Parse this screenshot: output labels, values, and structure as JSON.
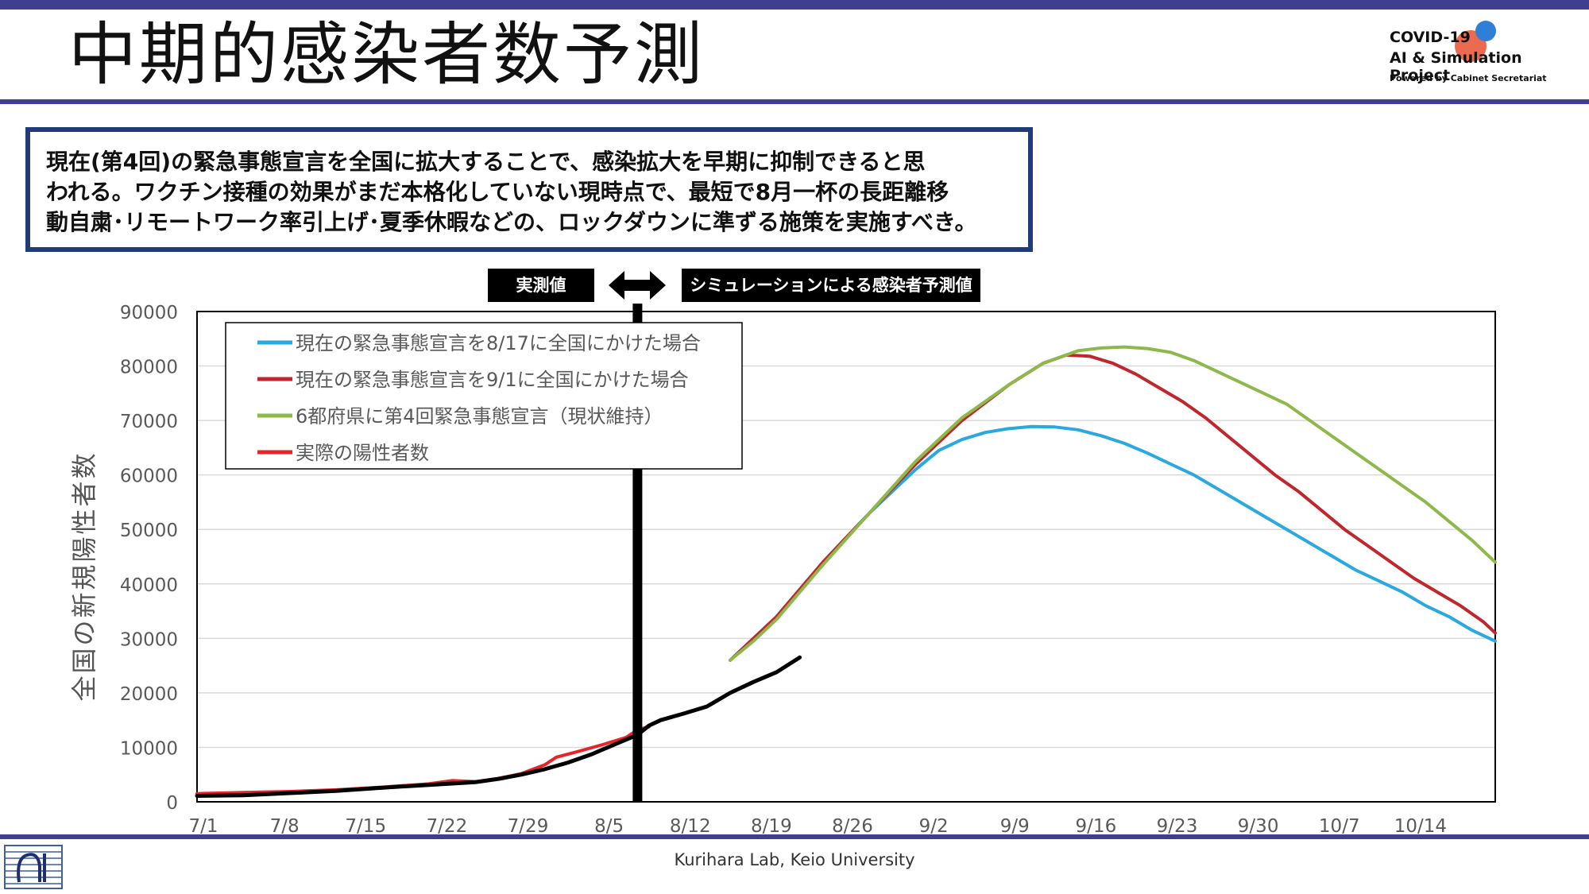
{
  "slide": {
    "title": "中期的感染者数予測",
    "footer": "Kurihara Lab, Keio University"
  },
  "logo": {
    "line1": "COVID-19",
    "line2": "AI & Simulation Project",
    "line3": "Powered by Cabinet Secretariat"
  },
  "callout": {
    "line1": "現在(第4回)の緊急事態宣言を全国に拡大することで、感染拡大を早期に抑制できると思",
    "line2": "われる。ワクチン接種の効果がまだ本格化していない現時点で、最短で8月一杯の長距離移",
    "line3": "動自粛･リモートワーク率引上げ･夏季休暇などの、ロックダウンに準ずる施策を実施すべき。"
  },
  "labels": {
    "observed": "実測値",
    "simulated": "シミュレーションによる感染者予測値"
  },
  "colors": {
    "band": "#3f3f8f",
    "callout_border": "#1f3c78",
    "blue": "#2aa8e0",
    "red": "#c0262c",
    "green": "#8db84a",
    "actual": "#e8232a",
    "black": "#000000"
  },
  "chart_data": {
    "type": "line",
    "ylabel": "全国の新規陽性者数",
    "ylim": [
      0,
      90000
    ],
    "y_ticks": [
      "0",
      "10000",
      "20000",
      "30000",
      "40000",
      "50000",
      "60000",
      "70000",
      "80000",
      "90000"
    ],
    "x_ticks": [
      "7/1",
      "7/8",
      "7/15",
      "7/22",
      "7/29",
      "8/5",
      "8/12",
      "8/19",
      "8/26",
      "9/2",
      "9/9",
      "9/16",
      "9/23",
      "9/30",
      "10/7",
      "10/14"
    ],
    "x_range_days": [
      0,
      112
    ],
    "divider_day": 38,
    "legend": [
      {
        "label": "現在の緊急事態宣言を8/17に全国にかけた場合",
        "color": "#2aa8e0"
      },
      {
        "label": "現在の緊急事態宣言を9/1に全国にかけた場合",
        "color": "#c0262c"
      },
      {
        "label": "6都府県に第4回緊急事態宣言（現状維持）",
        "color": "#8db84a"
      },
      {
        "label": "実際の陽性者数",
        "color": "#e8232a"
      }
    ],
    "series": [
      {
        "name": "現在の緊急事態宣言を8/17に全国にかけた場合",
        "color": "#2aa8e0",
        "width": 4,
        "points": [
          [
            46,
            26000
          ],
          [
            50,
            34000
          ],
          [
            54,
            44000
          ],
          [
            58,
            53000
          ],
          [
            62,
            61000
          ],
          [
            64,
            64500
          ],
          [
            66,
            66500
          ],
          [
            68,
            67800
          ],
          [
            70,
            68500
          ],
          [
            72,
            68900
          ],
          [
            74,
            68800
          ],
          [
            76,
            68300
          ],
          [
            78,
            67200
          ],
          [
            80,
            65800
          ],
          [
            82,
            64000
          ],
          [
            84,
            62000
          ],
          [
            86,
            60000
          ],
          [
            88,
            57500
          ],
          [
            90,
            55000
          ],
          [
            92,
            52500
          ],
          [
            94,
            50000
          ],
          [
            96,
            47500
          ],
          [
            98,
            45000
          ],
          [
            100,
            42500
          ],
          [
            102,
            40500
          ],
          [
            104,
            38500
          ],
          [
            106,
            36000
          ],
          [
            108,
            34000
          ],
          [
            110,
            31500
          ],
          [
            112,
            29500
          ]
        ]
      },
      {
        "name": "現在の緊急事態宣言を9/1に全国にかけた場合",
        "color": "#c0262c",
        "width": 4,
        "points": [
          [
            46,
            26000
          ],
          [
            50,
            34000
          ],
          [
            54,
            44000
          ],
          [
            58,
            53000
          ],
          [
            62,
            62000
          ],
          [
            66,
            70000
          ],
          [
            70,
            76500
          ],
          [
            73,
            80500
          ],
          [
            75,
            82000
          ],
          [
            77,
            81800
          ],
          [
            79,
            80500
          ],
          [
            81,
            78500
          ],
          [
            83,
            76000
          ],
          [
            85,
            73500
          ],
          [
            87,
            70500
          ],
          [
            89,
            67000
          ],
          [
            91,
            63500
          ],
          [
            93,
            60000
          ],
          [
            95,
            57000
          ],
          [
            97,
            53500
          ],
          [
            99,
            50000
          ],
          [
            101,
            47000
          ],
          [
            103,
            44000
          ],
          [
            105,
            41000
          ],
          [
            107,
            38500
          ],
          [
            109,
            36000
          ],
          [
            111,
            33000
          ],
          [
            112,
            31000
          ]
        ]
      },
      {
        "name": "6都府県に第4回緊急事態宣言（現状維持）",
        "color": "#8db84a",
        "width": 4,
        "points": [
          [
            46,
            26000
          ],
          [
            48,
            29500
          ],
          [
            50,
            33500
          ],
          [
            54,
            43500
          ],
          [
            58,
            53000
          ],
          [
            62,
            62500
          ],
          [
            66,
            70500
          ],
          [
            70,
            76500
          ],
          [
            73,
            80500
          ],
          [
            76,
            82800
          ],
          [
            78,
            83300
          ],
          [
            80,
            83500
          ],
          [
            82,
            83200
          ],
          [
            84,
            82500
          ],
          [
            86,
            81000
          ],
          [
            88,
            79000
          ],
          [
            90,
            77000
          ],
          [
            92,
            75000
          ],
          [
            94,
            73000
          ],
          [
            96,
            70000
          ],
          [
            98,
            67000
          ],
          [
            100,
            64000
          ],
          [
            102,
            61000
          ],
          [
            104,
            58000
          ],
          [
            106,
            55000
          ],
          [
            108,
            51500
          ],
          [
            110,
            48000
          ],
          [
            112,
            44000
          ]
        ]
      },
      {
        "name": "実際の陽性者数",
        "color": "#e8232a",
        "width": 4,
        "points": [
          [
            0,
            1500
          ],
          [
            4,
            1700
          ],
          [
            8,
            1900
          ],
          [
            12,
            2200
          ],
          [
            16,
            2700
          ],
          [
            20,
            3300
          ],
          [
            22,
            3900
          ],
          [
            24,
            3700
          ],
          [
            26,
            4300
          ],
          [
            28,
            5200
          ],
          [
            30,
            6800
          ],
          [
            31,
            8200
          ],
          [
            33,
            9300
          ],
          [
            35,
            10500
          ],
          [
            37,
            11800
          ],
          [
            38,
            13200
          ],
          [
            39,
            13800
          ]
        ]
      },
      {
        "name": "black",
        "color": "#000000",
        "width": 5,
        "points": [
          [
            0,
            1100
          ],
          [
            4,
            1200
          ],
          [
            8,
            1600
          ],
          [
            12,
            2000
          ],
          [
            16,
            2600
          ],
          [
            20,
            3100
          ],
          [
            24,
            3600
          ],
          [
            26,
            4200
          ],
          [
            28,
            5000
          ],
          [
            30,
            6000
          ],
          [
            32,
            7200
          ],
          [
            34,
            8700
          ],
          [
            36,
            10500
          ],
          [
            38,
            12300
          ],
          [
            39,
            14000
          ],
          [
            40,
            15000
          ],
          [
            42,
            16200
          ],
          [
            44,
            17500
          ],
          [
            46,
            20000
          ],
          [
            48,
            22000
          ],
          [
            50,
            23800
          ],
          [
            52,
            26500
          ]
        ]
      }
    ]
  }
}
